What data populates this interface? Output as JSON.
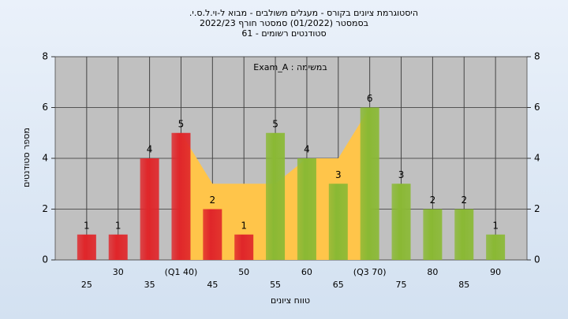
{
  "chart_data": {
    "type": "bar",
    "title": "היסטוגרמת ציונים בקורס - מעגלים משולבים - מבוא ל-וי.ל.ס.י.",
    "subtitle": "בסמסטר  (01/2022)  סמסטר חורף 2022/23",
    "subtitle2": "סטודנטים רשומים - 61",
    "annotation": "במשימה : Exam_A",
    "xlabel": "טווח ציונים",
    "ylabel": "מספר סטודנטים",
    "categories": [
      "25",
      "30",
      "35",
      "(Q1 40)",
      "45",
      "50",
      "55",
      "60",
      "65",
      "(Q3 70)",
      "75",
      "80",
      "85",
      "90"
    ],
    "values": [
      1,
      1,
      4,
      5,
      2,
      1,
      5,
      4,
      3,
      6,
      3,
      2,
      2,
      1
    ],
    "colors": [
      "#e0262a",
      "#e0262a",
      "#e0262a",
      "#e0262a",
      "#e0262a",
      "#e0262a",
      "#8ab934",
      "#8ab934",
      "#8ab934",
      "#8ab934",
      "#8ab934",
      "#8ab934",
      "#8ab934",
      "#8ab934"
    ],
    "area": {
      "color": "#ffc54a",
      "values": [
        null,
        null,
        null,
        5,
        3,
        3,
        3,
        4,
        4,
        6,
        null,
        null,
        null,
        null
      ]
    },
    "ylim": [
      0,
      8
    ],
    "yticks": [
      0,
      2,
      4,
      6,
      8
    ],
    "y2lim": [
      0,
      8
    ],
    "y2ticks": [
      0,
      2,
      4,
      6,
      8
    ],
    "grid": true
  }
}
